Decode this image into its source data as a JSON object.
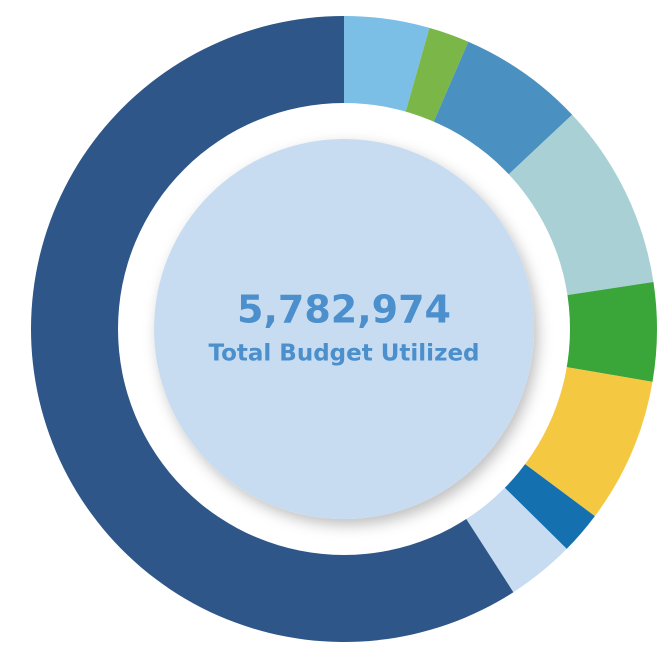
{
  "chart_data": {
    "type": "donut",
    "values": [
      4.4,
      2.1,
      6.5,
      9.6,
      5.1,
      7.5,
      2.2,
      3.5,
      59.1
    ],
    "colors": [
      "#7bbfe6",
      "#7ab648",
      "#4a90c0",
      "#a9d1d5",
      "#3aa63a",
      "#f5c842",
      "#1570b0",
      "#c7dcf1",
      "#2f5688"
    ],
    "annotations": [
      "5,782,974",
      "Total Budget Utilized"
    ]
  }
}
